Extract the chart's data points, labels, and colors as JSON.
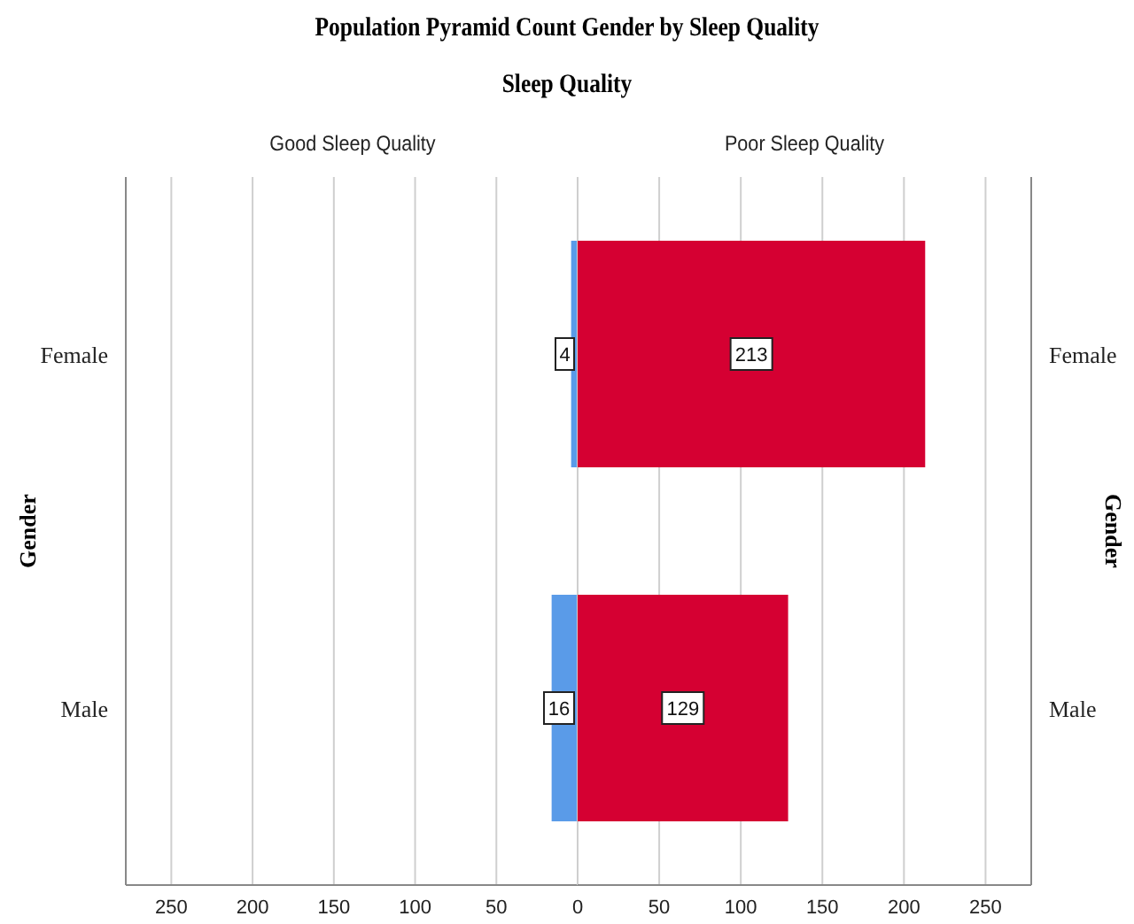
{
  "chart_data": [
    {
      "type": "bar",
      "orientation": "horizontal",
      "title": "Good Sleep Quality",
      "annotations": [
        "Population Pyramid Count Gender  by Sleep Quality",
        "Sleep Quality"
      ],
      "ylabel": "Gender",
      "categories": [
        "Female",
        "Male"
      ],
      "values": [
        4,
        16
      ],
      "color": "#5a9be8",
      "data_labels": true,
      "xlim": [
        278,
        0
      ],
      "xticks": [
        250,
        200,
        150,
        100,
        50
      ],
      "grid": "x"
    },
    {
      "type": "bar",
      "orientation": "horizontal",
      "title": "Poor Sleep Quality",
      "y2label": "Gender",
      "categories": [
        "Female",
        "Male"
      ],
      "values": [
        213,
        129
      ],
      "color": "#d50032",
      "data_labels": true,
      "xlim": [
        0,
        278
      ],
      "xticks": [
        0,
        50,
        100,
        150,
        200,
        250
      ],
      "grid": "x"
    }
  ]
}
